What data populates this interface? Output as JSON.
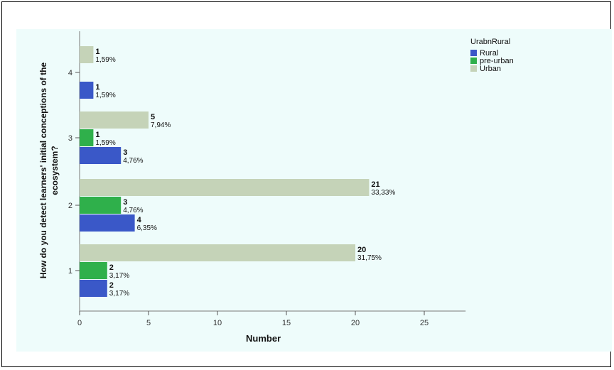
{
  "chart_data": {
    "type": "bar",
    "orientation": "horizontal",
    "ylabel": "How do you detect learners' initial conceptions of the ecosystem?",
    "xlabel": "Number",
    "categories": [
      "1",
      "2",
      "3",
      "4"
    ],
    "xlim": [
      0,
      28
    ],
    "xticks": [
      0,
      5,
      10,
      15,
      20,
      25
    ],
    "legend": {
      "title": "UrabnRural",
      "position": "top-right"
    },
    "series": [
      {
        "name": "Rural",
        "color": "#3a58c8",
        "values": [
          2,
          4,
          3,
          1
        ],
        "labels": [
          "3,17%",
          "6,35%",
          "4,76%",
          "1,59%"
        ]
      },
      {
        "name": "pre-urban",
        "color": "#2fb04b",
        "values": [
          2,
          3,
          1,
          null
        ],
        "labels": [
          "3,17%",
          "4,76%",
          "1,59%",
          null
        ]
      },
      {
        "name": "Urban",
        "color": "#c5d3b8",
        "values": [
          20,
          21,
          5,
          1
        ],
        "labels": [
          "31,75%",
          "33,33%",
          "7,94%",
          "1,59%"
        ]
      }
    ]
  }
}
